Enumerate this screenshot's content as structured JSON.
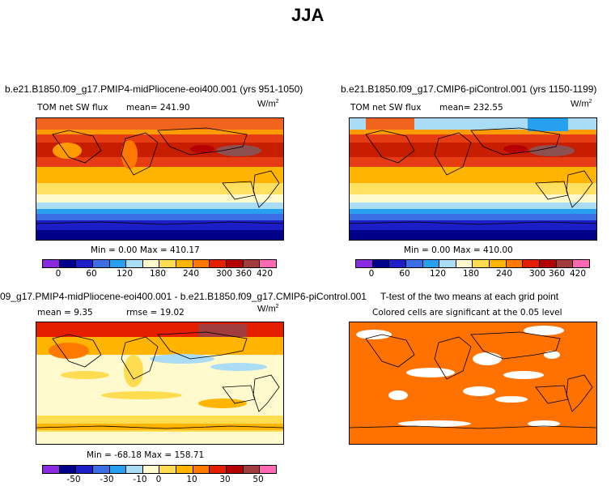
{
  "figure": {
    "title": "JJA"
  },
  "panels": {
    "top_left": {
      "title": "b.e21.B1850.f09_g17.PMIP4-midPliocene-eoi400.001 (yrs 951-1050)",
      "variable": "TOM net SW flux",
      "mean": "mean= 241.90",
      "units": "W/m",
      "units_exp": "2",
      "minmax": "Min =    0.00 Max = 410.17"
    },
    "top_right": {
      "title": "b.e21.B1850.f09_g17.CMIP6-piControl.001 (yrs 1150-1199)",
      "variable": "TOM net SW flux",
      "mean": "mean= 232.55",
      "units": "W/m",
      "units_exp": "2",
      "minmax": "Min =    0.00 Max = 410.00"
    },
    "bottom_left": {
      "title": "09_g17.PMIP4-midPliocene-eoi400.001 - b.e21.B1850.f09_g17.CMIP6-piControl.001",
      "mean": "mean =   9.35",
      "rmse": "rmse =   19.02",
      "units": "W/m",
      "units_exp": "2",
      "minmax": "Min = -68.18 Max = 158.71"
    },
    "bottom_right": {
      "title": "T-test of the two means at each grid point",
      "subtitle": "Colored cells are significant at the 0.05 level"
    }
  },
  "colorbars": {
    "absolute": {
      "colors": [
        "#8a2be2",
        "#00008b",
        "#1e1ec8",
        "#3c6ee6",
        "#28a0f0",
        "#aadcf5",
        "#fffacd",
        "#ffdc50",
        "#ffb400",
        "#ff7800",
        "#e61e00",
        "#b40000",
        "#a03c3c",
        "#ff69b4"
      ],
      "ticks": [
        "0",
        "60",
        "120",
        "180",
        "240",
        "300",
        "360",
        "420"
      ]
    },
    "difference": {
      "colors": [
        "#8a2be2",
        "#00008b",
        "#1e1ec8",
        "#3c6ee6",
        "#28a0f0",
        "#aadcf5",
        "#fffacd",
        "#ffdc50",
        "#ffb400",
        "#ff7800",
        "#e61e00",
        "#b40000",
        "#a03c3c",
        "#ff69b4"
      ],
      "ticks": [
        "-50",
        "-30",
        "-10",
        "0",
        "10",
        "30",
        "50"
      ]
    }
  }
}
